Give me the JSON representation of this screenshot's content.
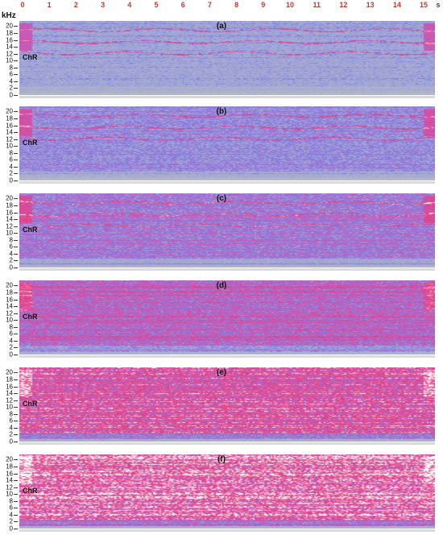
{
  "time_axis": {
    "ticks": [
      "0",
      "1",
      "2",
      "3",
      "4",
      "5",
      "6",
      "7",
      "8",
      "9",
      "10",
      "11",
      "12",
      "13",
      "14",
      "15"
    ],
    "unit": "s"
  },
  "frequency_axis": {
    "unit": "kHz",
    "ticks": [
      "0",
      "2",
      "4",
      "6",
      "8",
      "10",
      "12",
      "14",
      "16",
      "18",
      "20"
    ]
  },
  "side_label": "ChR",
  "panels": [
    {
      "label": "(a)",
      "intensity": 0.18
    },
    {
      "label": "(b)",
      "intensity": 0.28
    },
    {
      "label": "(c)",
      "intensity": 0.38
    },
    {
      "label": "(d)",
      "intensity": 0.52
    },
    {
      "label": "(e)",
      "intensity": 0.78
    },
    {
      "label": "(f)",
      "intensity": 0.95
    }
  ],
  "colors": {
    "background": "#b9bac6",
    "low": "#7d86e8",
    "mid": "#c85ab8",
    "high": "#e83c7a",
    "peak": "#ffffff",
    "tick_top": "#c0392b"
  }
}
